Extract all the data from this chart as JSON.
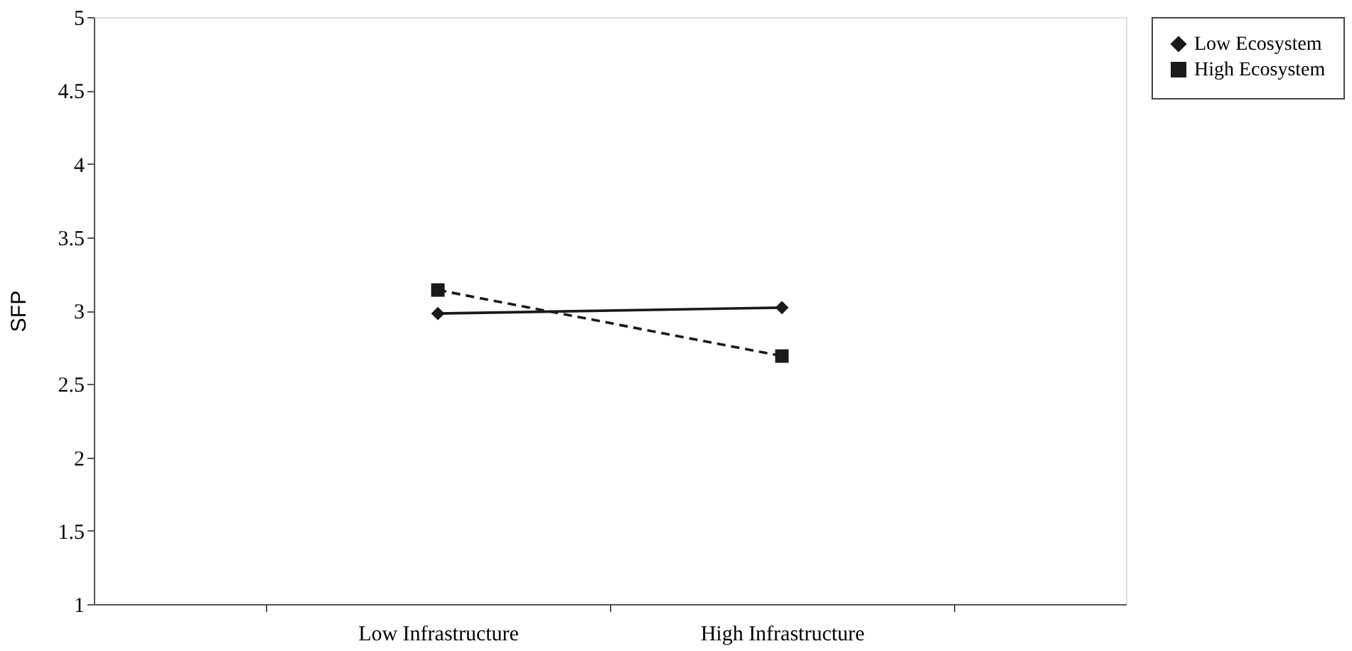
{
  "chart_data": {
    "type": "line",
    "ylabel": "SFP",
    "categories": [
      "Low Infrastructure",
      "High Infrastructure"
    ],
    "series": [
      {
        "name": "Low Ecosystem",
        "color": "#1a1a1a",
        "values": [
          2.98,
          3.02
        ],
        "marker": "diamond",
        "line_style": "solid"
      },
      {
        "name": "High Ecosystem",
        "color": "#1a1a1a",
        "values": [
          3.14,
          2.69
        ],
        "marker": "square",
        "line_style": "dashed"
      }
    ],
    "ylim": [
      1,
      5
    ],
    "yticks": [
      1,
      1.5,
      2,
      2.5,
      3,
      3.5,
      4,
      4.5,
      5
    ],
    "grid": false,
    "legend": "right"
  }
}
